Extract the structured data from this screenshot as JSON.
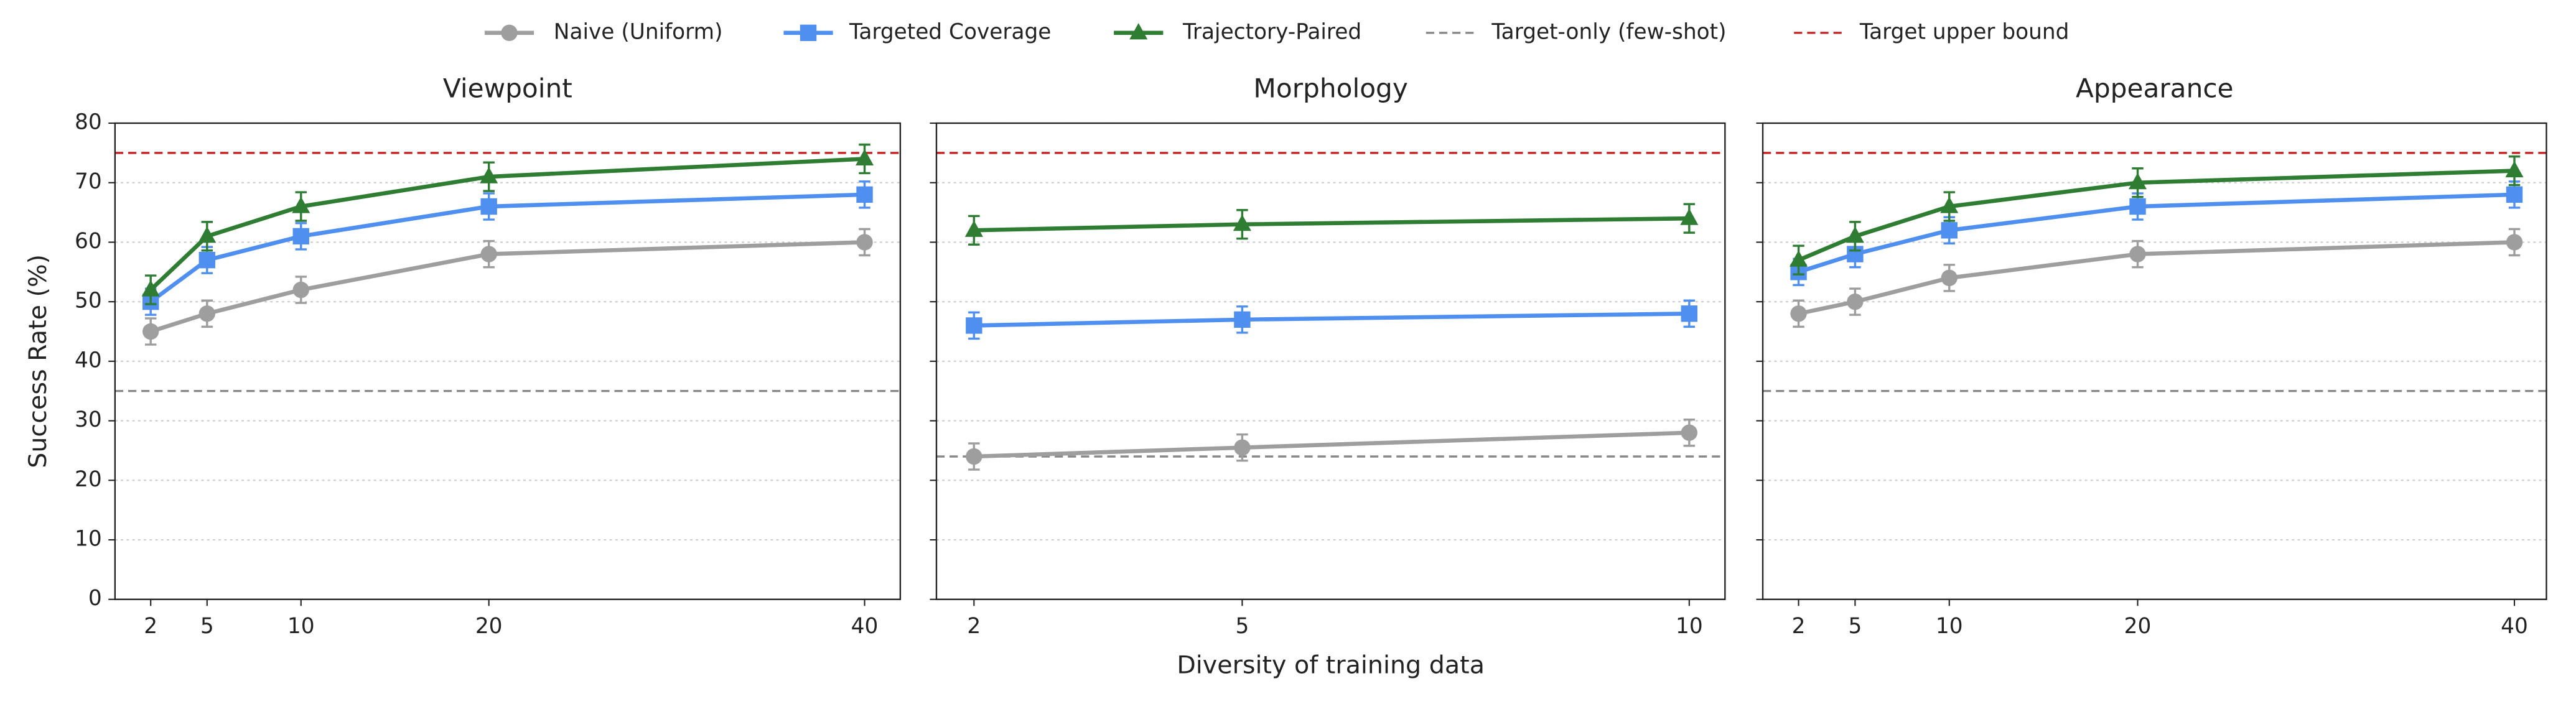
{
  "chart_data": [
    {
      "type": "line",
      "title": "Viewpoint",
      "y_label": "Success Rate (%)",
      "show_ytick_labels": true,
      "x": [
        2,
        5,
        10,
        20,
        40
      ],
      "xlim": [
        0.1,
        41.9
      ],
      "xticks": [
        2,
        5,
        10,
        20,
        40
      ],
      "ylim": [
        0,
        80
      ],
      "yticks": [
        0,
        10,
        20,
        30,
        40,
        50,
        60,
        70,
        80
      ],
      "grid": "y",
      "series": [
        {
          "name": "Naive (Uniform)",
          "color": "#9e9e9e",
          "marker": "circle",
          "values": [
            45,
            48,
            52,
            58,
            60
          ],
          "errors": [
            2.2,
            2.2,
            2.2,
            2.2,
            2.2
          ]
        },
        {
          "name": "Targeted Coverage",
          "color": "#4f8ff0",
          "marker": "square",
          "values": [
            50,
            57,
            61,
            66,
            68
          ],
          "errors": [
            2.2,
            2.2,
            2.2,
            2.2,
            2.2
          ]
        },
        {
          "name": "Trajectory-Paired",
          "color": "#2e7d32",
          "marker": "triangle",
          "values": [
            52,
            61,
            66,
            71,
            74
          ],
          "errors": [
            2.4,
            2.4,
            2.4,
            2.4,
            2.4
          ]
        }
      ],
      "hlines": [
        {
          "name": "Target-only (few-shot)",
          "value": 35,
          "color": "#888888"
        },
        {
          "name": "Target upper bound",
          "value": 75,
          "color": "#c62828"
        }
      ]
    },
    {
      "type": "line",
      "title": "Morphology",
      "x_label": "Diversity of training data",
      "show_ytick_labels": false,
      "x": [
        2,
        5,
        10
      ],
      "xlim": [
        1.58,
        10.4
      ],
      "xticks": [
        2,
        5,
        10
      ],
      "ylim": [
        0,
        80
      ],
      "yticks": [
        0,
        10,
        20,
        30,
        40,
        50,
        60,
        70,
        80
      ],
      "grid": "y",
      "series": [
        {
          "name": "Naive (Uniform)",
          "color": "#9e9e9e",
          "marker": "circle",
          "values": [
            24,
            25.5,
            28
          ],
          "errors": [
            2.2,
            2.2,
            2.2
          ]
        },
        {
          "name": "Targeted Coverage",
          "color": "#4f8ff0",
          "marker": "square",
          "values": [
            46,
            47,
            48
          ],
          "errors": [
            2.2,
            2.2,
            2.2
          ]
        },
        {
          "name": "Trajectory-Paired",
          "color": "#2e7d32",
          "marker": "triangle",
          "values": [
            62,
            63,
            64
          ],
          "errors": [
            2.4,
            2.4,
            2.4
          ]
        }
      ],
      "hlines": [
        {
          "name": "Target-only (few-shot)",
          "value": 24,
          "color": "#888888"
        },
        {
          "name": "Target upper bound",
          "value": 75,
          "color": "#c62828"
        }
      ]
    },
    {
      "type": "line",
      "title": "Appearance",
      "show_ytick_labels": false,
      "x": [
        2,
        5,
        10,
        20,
        40
      ],
      "xlim": [
        0.1,
        41.7
      ],
      "xticks": [
        2,
        5,
        10,
        20,
        40
      ],
      "ylim": [
        0,
        80
      ],
      "yticks": [
        0,
        10,
        20,
        30,
        40,
        50,
        60,
        70,
        80
      ],
      "grid": "y",
      "series": [
        {
          "name": "Naive (Uniform)",
          "color": "#9e9e9e",
          "marker": "circle",
          "values": [
            48,
            50,
            54,
            58,
            60
          ],
          "errors": [
            2.2,
            2.2,
            2.2,
            2.2,
            2.2
          ]
        },
        {
          "name": "Targeted Coverage",
          "color": "#4f8ff0",
          "marker": "square",
          "values": [
            55,
            58,
            62,
            66,
            68
          ],
          "errors": [
            2.2,
            2.2,
            2.2,
            2.2,
            2.2
          ]
        },
        {
          "name": "Trajectory-Paired",
          "color": "#2e7d32",
          "marker": "triangle",
          "values": [
            57,
            61,
            66,
            70,
            72
          ],
          "errors": [
            2.4,
            2.4,
            2.4,
            2.4,
            2.4
          ]
        }
      ],
      "hlines": [
        {
          "name": "Target-only (few-shot)",
          "value": 35,
          "color": "#888888"
        },
        {
          "name": "Target upper bound",
          "value": 75,
          "color": "#c62828"
        }
      ]
    }
  ]
}
